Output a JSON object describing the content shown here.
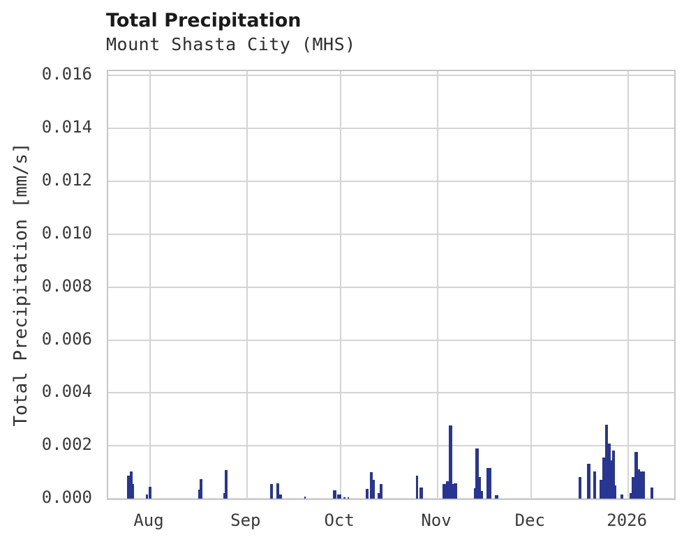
{
  "header": {
    "title": "Total Precipitation",
    "subtitle": "Mount Shasta City (MHS)"
  },
  "colors": {
    "bar": "#283593",
    "grid": "#d4d4d4",
    "frame": "#c6c6c6",
    "title_text": "#1a1a1a",
    "tick_text": "#3a3a3a",
    "background": "#ffffff"
  },
  "chart_data": {
    "type": "bar",
    "title": "Total Precipitation",
    "subtitle": "Mount Shasta City (MHS)",
    "xlabel": "",
    "ylabel": "Total Precipitation [mm/s]",
    "x_unit": "days since 2025-08-01",
    "x_domain": [
      -13.4,
      167.7
    ],
    "ylim": [
      0,
      0.01617
    ],
    "grid": true,
    "legend_position": "none",
    "yticks": [
      0.0,
      0.002,
      0.004,
      0.006,
      0.008,
      0.01,
      0.012,
      0.014,
      0.016
    ],
    "ytick_labels": [
      "0.000",
      "0.002",
      "0.004",
      "0.006",
      "0.008",
      "0.010",
      "0.012",
      "0.014",
      "0.016"
    ],
    "xticks": [
      {
        "d": 0,
        "label": "Aug"
      },
      {
        "d": 31,
        "label": "Sep"
      },
      {
        "d": 61,
        "label": "Oct"
      },
      {
        "d": 92,
        "label": "Nov"
      },
      {
        "d": 122,
        "label": "Dec"
      },
      {
        "d": 153,
        "label": "2026"
      }
    ],
    "bars": [
      {
        "d": -7.3,
        "w": 0.8,
        "v": 0.00086
      },
      {
        "d": -6.5,
        "w": 0.9,
        "v": 0.00103
      },
      {
        "d": -5.6,
        "w": 0.55,
        "v": 0.00055
      },
      {
        "d": -1.4,
        "w": 0.8,
        "v": 0.00017
      },
      {
        "d": -0.55,
        "w": 1.0,
        "v": 0.00045
      },
      {
        "d": 15.4,
        "w": 0.5,
        "v": 0.00034
      },
      {
        "d": 15.9,
        "w": 0.8,
        "v": 0.00074
      },
      {
        "d": 23.4,
        "w": 0.4,
        "v": 0.0002
      },
      {
        "d": 23.8,
        "w": 0.9,
        "v": 0.00108
      },
      {
        "d": 38.4,
        "w": 0.95,
        "v": 0.00055
      },
      {
        "d": 40.4,
        "w": 1.0,
        "v": 0.00059
      },
      {
        "d": 41.4,
        "w": 0.75,
        "v": 0.00016
      },
      {
        "d": 49.3,
        "w": 0.5,
        "v": 7e-05
      },
      {
        "d": 58.5,
        "w": 1.1,
        "v": 0.00032
      },
      {
        "d": 59.9,
        "w": 1.25,
        "v": 0.00016
      },
      {
        "d": 61.9,
        "w": 0.6,
        "v": 5e-05
      },
      {
        "d": 63.1,
        "w": 0.5,
        "v": 4e-05
      },
      {
        "d": 69.0,
        "w": 0.9,
        "v": 0.00036
      },
      {
        "d": 70.3,
        "w": 1.0,
        "v": 0.001
      },
      {
        "d": 71.3,
        "w": 0.5,
        "v": 0.0007
      },
      {
        "d": 72.9,
        "w": 0.6,
        "v": 0.0002
      },
      {
        "d": 73.5,
        "w": 0.9,
        "v": 0.00055
      },
      {
        "d": 85.0,
        "w": 0.8,
        "v": 0.00086
      },
      {
        "d": 86.1,
        "w": 1.1,
        "v": 0.00043
      },
      {
        "d": 93.5,
        "w": 1.1,
        "v": 0.00055
      },
      {
        "d": 94.6,
        "w": 0.9,
        "v": 0.00065
      },
      {
        "d": 95.5,
        "w": 1.1,
        "v": 0.00277
      },
      {
        "d": 96.6,
        "w": 0.6,
        "v": 0.00055
      },
      {
        "d": 97.2,
        "w": 1.0,
        "v": 0.00058
      },
      {
        "d": 103.6,
        "w": 0.45,
        "v": 0.0004
      },
      {
        "d": 104.05,
        "w": 1.1,
        "v": 0.00189
      },
      {
        "d": 105.15,
        "w": 0.8,
        "v": 0.00082
      },
      {
        "d": 105.95,
        "w": 0.55,
        "v": 0.0003
      },
      {
        "d": 107.7,
        "w": 1.5,
        "v": 0.00117
      },
      {
        "d": 110.4,
        "w": 1.0,
        "v": 0.00014
      },
      {
        "d": 137.2,
        "w": 0.9,
        "v": 0.00082
      },
      {
        "d": 139.8,
        "w": 1.0,
        "v": 0.00133
      },
      {
        "d": 141.7,
        "w": 0.9,
        "v": 0.00104
      },
      {
        "d": 143.9,
        "w": 0.8,
        "v": 0.00072
      },
      {
        "d": 144.7,
        "w": 0.85,
        "v": 0.00155
      },
      {
        "d": 145.55,
        "w": 0.95,
        "v": 0.0028
      },
      {
        "d": 146.5,
        "w": 0.85,
        "v": 0.00208
      },
      {
        "d": 147.35,
        "w": 0.45,
        "v": 0.00146
      },
      {
        "d": 147.8,
        "w": 1.0,
        "v": 0.00183
      },
      {
        "d": 148.8,
        "w": 0.4,
        "v": 0.0005
      },
      {
        "d": 150.6,
        "w": 0.9,
        "v": 0.00016
      },
      {
        "d": 153.4,
        "w": 0.75,
        "v": 0.0002
      },
      {
        "d": 154.15,
        "w": 0.9,
        "v": 0.00083
      },
      {
        "d": 155.05,
        "w": 1.0,
        "v": 0.00177
      },
      {
        "d": 156.05,
        "w": 0.75,
        "v": 0.0011
      },
      {
        "d": 156.8,
        "w": 1.5,
        "v": 0.00104
      },
      {
        "d": 160.0,
        "w": 0.9,
        "v": 0.00043
      }
    ]
  }
}
